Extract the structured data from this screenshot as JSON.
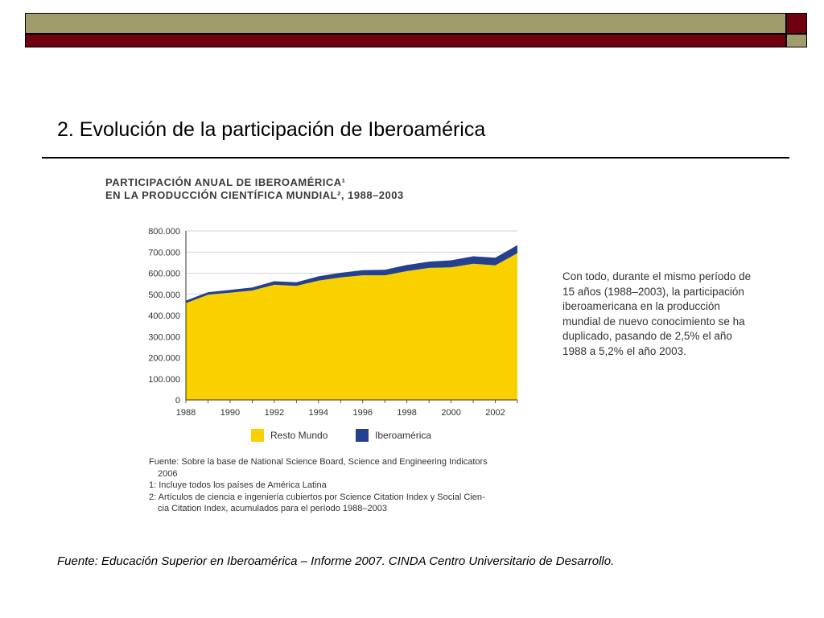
{
  "slide": {
    "title": "2. Evolución de la participación de Iberoamérica",
    "source": "Fuente: Educación Superior en Iberoamérica – Informe 2007.  CINDA Centro Universitario de Desarrollo."
  },
  "colors": {
    "banner_olive": "#a09c6c",
    "banner_maroon": "#6e0010",
    "resto_mundo": "#f9d000",
    "iberoamerica": "#24408e"
  },
  "chart_title": {
    "line1": "PARTICIPACIÓN ANUAL DE IBEROAMÉRICA¹",
    "line2": "EN LA PRODUCCIÓN CIENTÍFICA MUNDIAL², 1988–2003"
  },
  "side_note": "Con todo, durante el mismo período de 15 años (1988–2003), la participación iberoamericana en la producción mundial de nuevo conocimiento se ha duplicado, pasando de 2,5% el año 1988 a 5,2% el año 2003.",
  "footnotes": {
    "line1": "Fuente: Sobre la base de National Science Board, Science and Engineering Indicators",
    "line1b": "2006",
    "line2": "1: Incluye todos los países de América Latina",
    "line3": "2: Artículos de ciencia e ingeniería cubiertos por Science Citation Index y Social Cien-",
    "line3b": "cia Citation Index, acumulados para el período 1988–2003"
  },
  "chart_data": {
    "type": "area",
    "stacked": true,
    "title": "PARTICIPACIÓN ANUAL DE IBEROAMÉRICA¹ EN LA PRODUCCIÓN CIENTÍFICA MUNDIAL², 1988–2003",
    "x": [
      1988,
      1989,
      1990,
      1991,
      1992,
      1993,
      1994,
      1995,
      1996,
      1997,
      1998,
      1999,
      2000,
      2001,
      2002,
      2003
    ],
    "x_ticks": [
      "1988",
      "1990",
      "1992",
      "1994",
      "1996",
      "1998",
      "2000",
      "2002"
    ],
    "y_ticks": [
      "0",
      "100.000",
      "200.000",
      "300.000",
      "400.000",
      "500.000",
      "600.000",
      "700.000",
      "800.000"
    ],
    "ylim": [
      0,
      800000
    ],
    "grid": true,
    "legend_position": "bottom",
    "series": [
      {
        "name": "Resto Mundo",
        "values": [
          458000,
          498000,
          508000,
          518000,
          545000,
          540000,
          565000,
          580000,
          590000,
          590000,
          610000,
          625000,
          628000,
          645000,
          637000,
          695000
        ]
      },
      {
        "name": "Iberoamérica",
        "values": [
          12000,
          12000,
          13000,
          14000,
          17000,
          17000,
          20000,
          22000,
          24000,
          26000,
          29000,
          30000,
          33000,
          35000,
          36000,
          38000
        ]
      }
    ]
  }
}
